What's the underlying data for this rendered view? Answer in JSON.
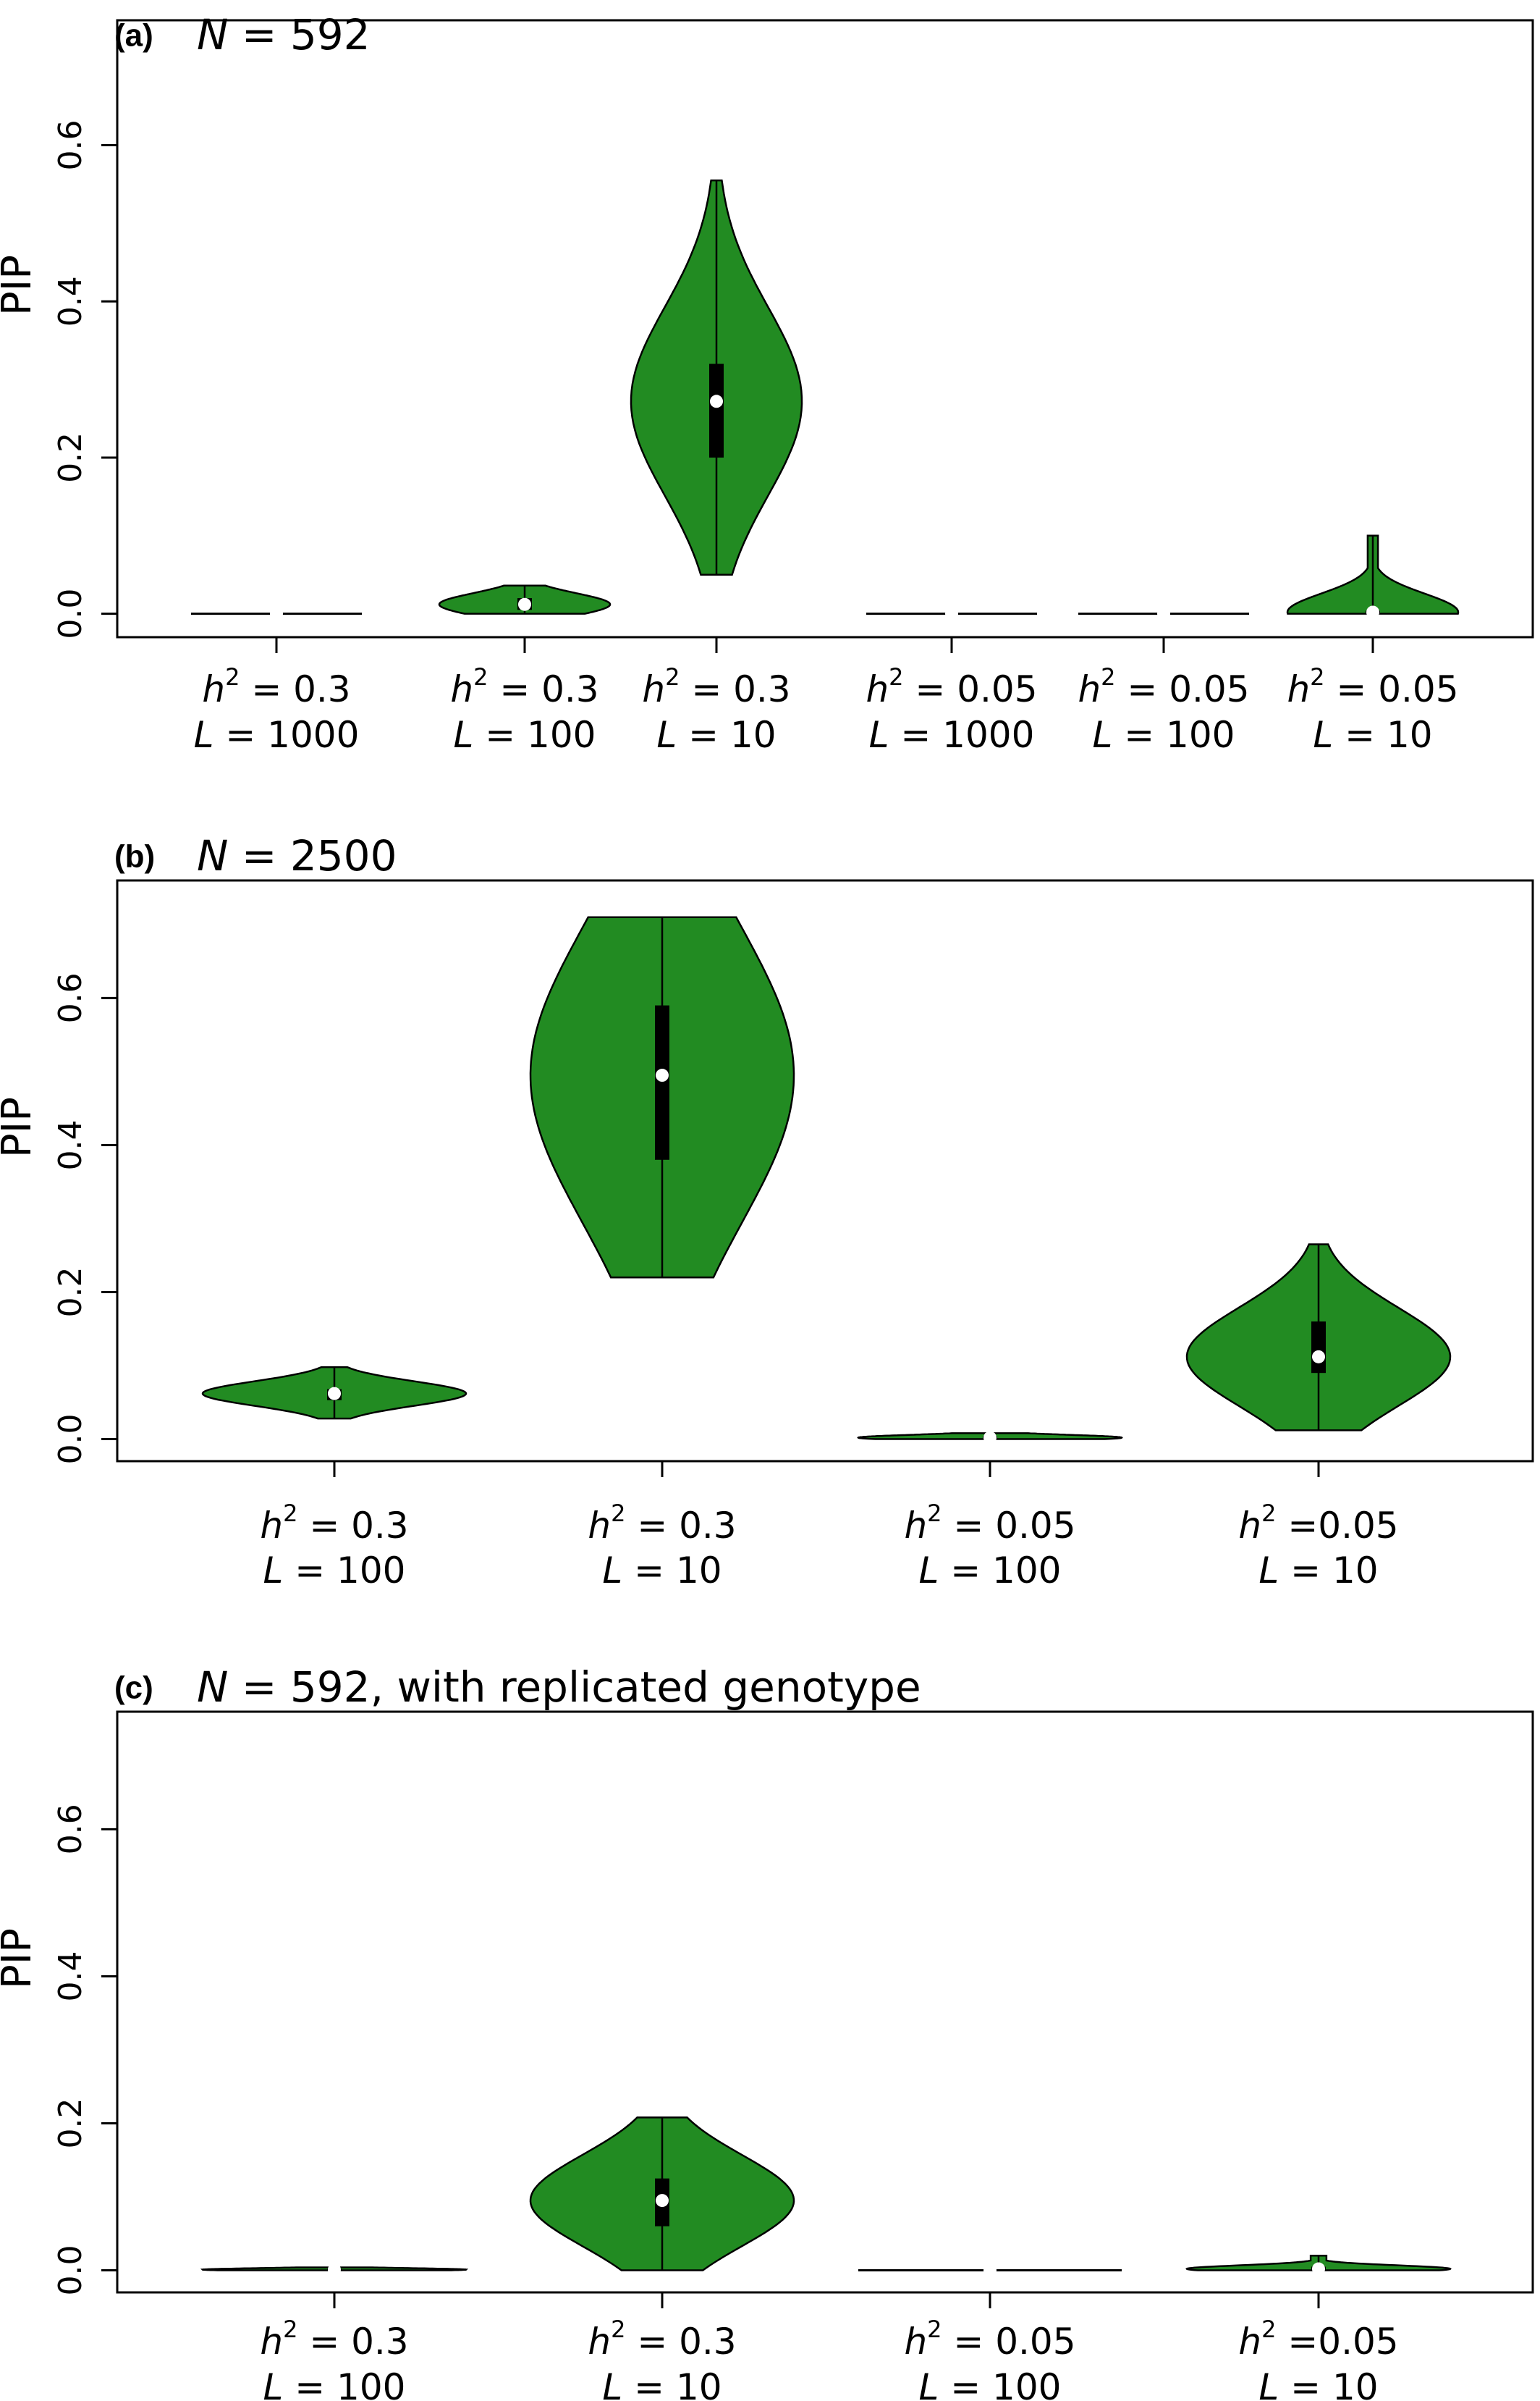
{
  "chart_data": [
    {
      "type": "violin",
      "panel": "(a)",
      "title_n": "N",
      "title_rest": " = 592",
      "ylabel": "PIP",
      "ylim": [
        -0.03,
        0.76
      ],
      "yticks": [
        "0.0",
        "0.2",
        "0.4",
        "0.6"
      ],
      "ytick_values": [
        0.0,
        0.2,
        0.4,
        0.6
      ],
      "groups": [
        {
          "h2": "0.3",
          "L": "1000",
          "min": 0.0,
          "max": 0.0,
          "q1": 0.0,
          "median": 0.0,
          "q3": 0.0,
          "max_width": 0
        },
        {
          "h2": "0.3",
          "L": "100",
          "min": 0.0,
          "max": 0.036,
          "q1": 0.005,
          "median": 0.012,
          "q3": 0.02,
          "max_width": 0.6
        },
        {
          "h2": "0.3",
          "L": "10",
          "min": 0.05,
          "max": 0.555,
          "q1": 0.2,
          "median": 0.272,
          "q3": 0.32,
          "max_width": 0.6
        },
        {
          "h2": "0.05",
          "L": "1000",
          "min": 0.0,
          "max": 0.0,
          "q1": 0.0,
          "median": 0.0,
          "q3": 0.0,
          "max_width": 0
        },
        {
          "h2": "0.05",
          "L": "100",
          "min": 0.0,
          "max": 0.0,
          "q1": 0.0,
          "median": 0.0,
          "q3": 0.0,
          "max_width": 0
        },
        {
          "h2": "0.05",
          "L": "10",
          "min": 0.0,
          "max": 0.1,
          "q1": 0.0,
          "median": 0.002,
          "q3": 0.004,
          "max_width": 0.6
        }
      ]
    },
    {
      "type": "violin",
      "panel": "(b)",
      "title_n": "N",
      "title_rest": " = 2500",
      "ylabel": "PIP",
      "ylim": [
        -0.03,
        0.76
      ],
      "yticks": [
        "0.0",
        "0.2",
        "0.4",
        "0.6"
      ],
      "ytick_values": [
        0.0,
        0.2,
        0.4,
        0.6
      ],
      "groups": [
        {
          "h2": "0.3",
          "L": "100",
          "min": 0.028,
          "max": 0.098,
          "q1": 0.053,
          "median": 0.062,
          "q3": 0.068,
          "max_width": 0.4
        },
        {
          "h2": "0.3",
          "L": "10",
          "min": 0.22,
          "max": 0.71,
          "q1": 0.38,
          "median": 0.495,
          "q3": 0.59,
          "max_width": 0.4
        },
        {
          "h2": "0.05",
          "L": "100",
          "min": 0.0,
          "max": 0.008,
          "q1": 0.0,
          "median": 0.002,
          "q3": 0.004,
          "max_width": 0.4
        },
        {
          "h2": "0.05",
          "L": "10",
          "min": 0.012,
          "max": 0.265,
          "q1": 0.09,
          "median": 0.112,
          "q3": 0.16,
          "max_width": 0.4
        }
      ],
      "h2_label_spacing": [
        "",
        "",
        "",
        "nospace"
      ]
    },
    {
      "type": "violin",
      "panel": "(c)",
      "title_n": "N",
      "title_rest": " = 592, with replicated genotype",
      "ylabel": "PIP",
      "ylim": [
        -0.03,
        0.76
      ],
      "yticks": [
        "0.0",
        "0.2",
        "0.4",
        "0.6"
      ],
      "ytick_values": [
        0.0,
        0.2,
        0.4,
        0.6
      ],
      "groups": [
        {
          "h2": "0.3",
          "L": "100",
          "min": 0.0,
          "max": 0.004,
          "q1": 0.0,
          "median": 0.001,
          "q3": 0.002,
          "max_width": 0.4
        },
        {
          "h2": "0.3",
          "L": "10",
          "min": 0.0,
          "max": 0.208,
          "q1": 0.06,
          "median": 0.095,
          "q3": 0.125,
          "max_width": 0.4
        },
        {
          "h2": "0.05",
          "L": "100",
          "min": 0.0,
          "max": 0.0,
          "q1": 0.0,
          "median": 0.0,
          "q3": 0.0,
          "max_width": 0.4
        },
        {
          "h2": "0.05",
          "L": "10",
          "min": 0.0,
          "max": 0.02,
          "q1": 0.0,
          "median": 0.002,
          "q3": 0.005,
          "max_width": 0.4
        }
      ],
      "h2_label_spacing": [
        "",
        "",
        "",
        "nospace"
      ]
    }
  ],
  "colors": {
    "violin_fill": "#228b22",
    "violin_stroke": "#000000",
    "box": "#000000",
    "median_dot": "#ffffff"
  }
}
